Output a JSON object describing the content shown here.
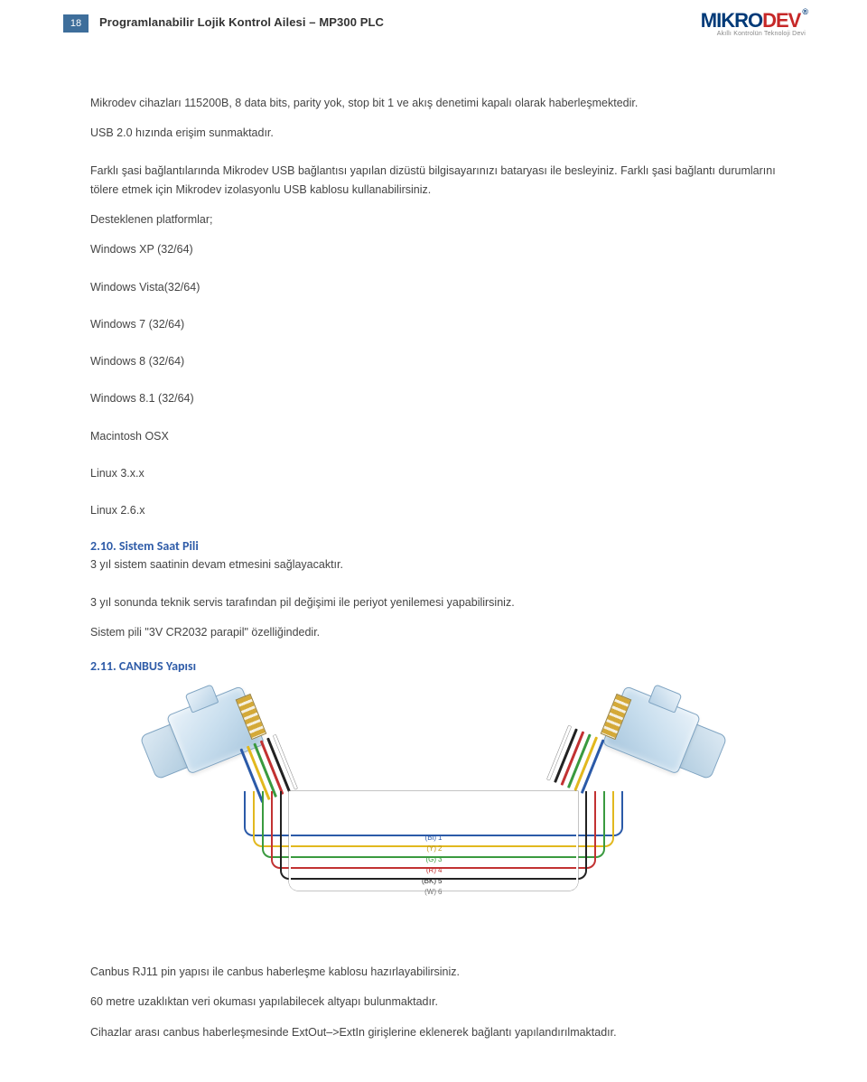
{
  "header": {
    "page_number": "18",
    "doc_title": "Programlanabilir Lojik Kontrol Ailesi – MP300 PLC",
    "logo_text_1": "MIKRO",
    "logo_text_2": "DEV",
    "logo_reg": "®",
    "logo_tagline": "Akıllı Kontrolün Teknoloji Devi",
    "logo_colors": {
      "primary": "#003a78",
      "accent": "#c62828"
    }
  },
  "body": {
    "p1": "Mikrodev cihazları 115200B, 8 data bits, parity yok, stop bit 1 ve akış denetimi kapalı olarak haberleşmektedir.",
    "p2": "USB 2.0 hızında erişim sunmaktadır.",
    "p3": "Farklı şasi bağlantılarında Mikrodev USB bağlantısı yapılan dizüstü bilgisayarınızı bataryası ile besleyiniz. Farklı şasi bağlantı durumlarını tölere etmek için Mikrodev izolasyonlu USB kablosu kullanabilirsiniz.",
    "p4": "Desteklenen platformlar;",
    "platforms": [
      "Windows XP (32/64)",
      "Windows Vista(32/64)",
      "Windows 7 (32/64)",
      "Windows 8 (32/64)",
      "Windows 8.1 (32/64)",
      "Macintosh OSX",
      "Linux 3.x.x",
      "Linux 2.6.x"
    ],
    "sec210_title": "2.10. Sistem Saat Pili",
    "sec210_p1": "3 yıl sistem saatinin devam etmesini sağlayacaktır.",
    "sec210_p2": "3 yıl sonunda teknik servis tarafından pil değişimi ile periyot yenilemesi yapabilirsiniz.",
    "sec210_p3": "Sistem pili \"3V CR2032 parapil\" özelliğindedir.",
    "sec211_title": "2.11. CANBUS Yapısı",
    "canbus": {
      "wire_colors": {
        "1": "#2b5aa8",
        "2": "#e2b81e",
        "3": "#3a9a3f",
        "4": "#c23232",
        "5": "#222222",
        "6": "#ffffff"
      },
      "pins": [
        {
          "code": "(Bl)",
          "num": "1",
          "color": "#2b5aa8"
        },
        {
          "code": "(Y)",
          "num": "2",
          "color": "#b8941a"
        },
        {
          "code": "(G)",
          "num": "3",
          "color": "#3a9a3f"
        },
        {
          "code": "(R)",
          "num": "4",
          "color": "#c23232"
        },
        {
          "code": "(BK)",
          "num": "5",
          "color": "#222222"
        },
        {
          "code": "(W)",
          "num": "6",
          "color": "#777777"
        }
      ]
    },
    "p_after1": "Canbus RJ11 pin yapısı ile canbus haberleşme kablosu hazırlayabilirsiniz.",
    "p_after2": "60 metre uzaklıktan veri okuması yapılabilecek altyapı bulunmaktadır.",
    "p_after3": "Cihazlar arası canbus haberleşmesinde ExtOut–>ExtIn girişlerine eklenerek bağlantı yapılandırılmaktadır."
  }
}
